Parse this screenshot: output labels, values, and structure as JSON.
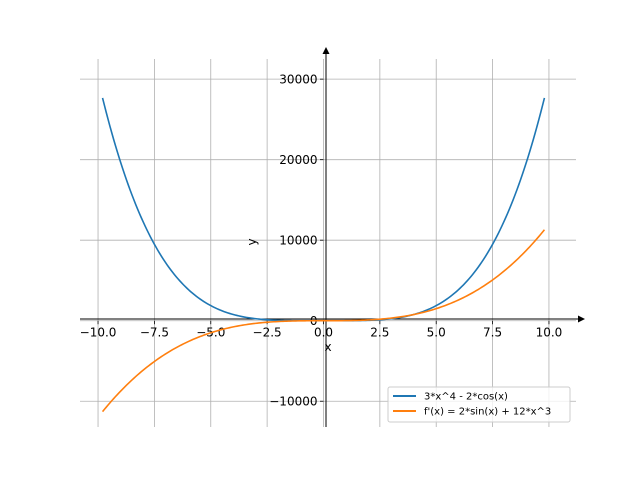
{
  "chart_data": {
    "type": "line",
    "title": "",
    "xlabel": "x",
    "ylabel": "y",
    "xlim": [
      -10.8,
      11.2
    ],
    "ylim": [
      -13200,
      33000
    ],
    "x_ticks": [
      -10.0,
      -7.5,
      -5.0,
      -2.5,
      0.0,
      2.5,
      5.0,
      7.5,
      10.0
    ],
    "x_tick_labels": [
      "−10.0",
      "−7.5",
      "−5.0",
      "−2.5",
      "0.0",
      "2.5",
      "5.0",
      "7.5",
      "10.0"
    ],
    "y_ticks": [
      -10000,
      0,
      10000,
      20000,
      30000
    ],
    "y_tick_labels": [
      "−10000",
      "0",
      "10000",
      "20000",
      "30000"
    ],
    "grid": true,
    "legend_position": "lower-right",
    "x_range": [
      -9.8,
      9.8
    ],
    "series": [
      {
        "name": "3*x^4 - 2*cos(x)",
        "color": "#1f77b4",
        "x": [
          -9.8,
          -9.0,
          -8.0,
          -7.0,
          -6.0,
          -5.0,
          -4.0,
          -3.0,
          -2.0,
          -1.0,
          0.0,
          1.0,
          2.0,
          3.0,
          4.0,
          5.0,
          6.0,
          7.0,
          8.0,
          9.0,
          9.8
        ],
        "y": [
          27668,
          19685,
          12288,
          7202,
          3886,
          1874,
          769,
          245,
          49,
          2,
          -2,
          2,
          49,
          245,
          769,
          1874,
          3886,
          7202,
          12288,
          19685,
          27668
        ]
      },
      {
        "name": "f'(x) = 2*sin(x) + 12*x^3",
        "color": "#ff7f0e",
        "x": [
          -9.8,
          -9.0,
          -8.0,
          -7.0,
          -6.0,
          -5.0,
          -4.0,
          -3.0,
          -2.0,
          -1.0,
          0.0,
          1.0,
          2.0,
          3.0,
          4.0,
          5.0,
          6.0,
          7.0,
          8.0,
          9.0,
          9.8
        ],
        "y": [
          -11293,
          -8749,
          -6142,
          -4115,
          -2592,
          -1498,
          -767,
          -324,
          -98,
          -14,
          0,
          14,
          98,
          324,
          767,
          1498,
          2592,
          4115,
          6142,
          8749,
          11293
        ]
      }
    ]
  }
}
